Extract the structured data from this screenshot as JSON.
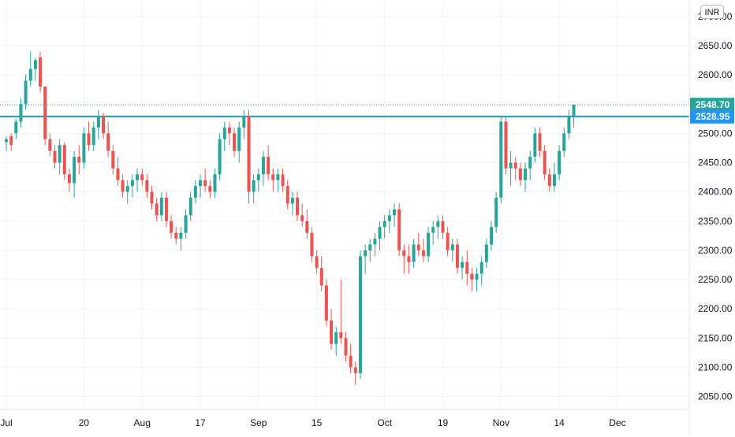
{
  "instrument": {
    "currency": "INR"
  },
  "colors": {
    "up": "#26a69a",
    "down": "#ef5350",
    "grid": "#f0f3fa",
    "level_line": "#1e9bc4",
    "last_tag": "#26a69a",
    "level_tag": "#2196f3",
    "dotted": "#26a69a"
  },
  "chart_data": {
    "type": "candlestick",
    "y_axis": {
      "range": [
        2028,
        2728
      ],
      "ticks": [
        "2700.00",
        "2650.00",
        "2600.00",
        "2550.00",
        "2500.00",
        "2450.00",
        "2400.00",
        "2350.00",
        "2300.00",
        "2250.00",
        "2200.00",
        "2150.00",
        "2100.00",
        "2050.00"
      ],
      "tick_values": [
        2700,
        2650,
        2600,
        2550,
        2500,
        2450,
        2400,
        2350,
        2300,
        2250,
        2200,
        2150,
        2100,
        2050
      ]
    },
    "x_axis": {
      "labels": [
        "Jul",
        "20",
        "Aug",
        "17",
        "Sep",
        "15",
        "Oct",
        "19",
        "Nov",
        "14",
        "Dec"
      ],
      "label_bar_index": [
        0,
        16,
        28,
        40,
        52,
        64,
        78,
        90,
        102,
        114,
        126
      ]
    },
    "price_lines": {
      "last_price": 2548.7,
      "last_price_label": "2548.70",
      "level": 2528.95,
      "level_label": "2528.95"
    },
    "candles": [
      [
        2485,
        2495,
        2470,
        2490
      ],
      [
        2495,
        2500,
        2470,
        2480
      ],
      [
        2500,
        2525,
        2490,
        2520
      ],
      [
        2520,
        2560,
        2510,
        2550
      ],
      [
        2550,
        2600,
        2540,
        2590
      ],
      [
        2590,
        2640,
        2580,
        2610
      ],
      [
        2610,
        2630,
        2590,
        2625
      ],
      [
        2630,
        2640,
        2570,
        2580
      ],
      [
        2580,
        2580,
        2480,
        2490
      ],
      [
        2490,
        2500,
        2460,
        2470
      ],
      [
        2470,
        2480,
        2440,
        2450
      ],
      [
        2450,
        2490,
        2430,
        2480
      ],
      [
        2480,
        2485,
        2420,
        2430
      ],
      [
        2430,
        2440,
        2400,
        2415
      ],
      [
        2415,
        2470,
        2390,
        2460
      ],
      [
        2460,
        2480,
        2430,
        2450
      ],
      [
        2450,
        2510,
        2440,
        2500
      ],
      [
        2500,
        2520,
        2470,
        2480
      ],
      [
        2480,
        2520,
        2470,
        2510
      ],
      [
        2510,
        2540,
        2490,
        2530
      ],
      [
        2530,
        2535,
        2490,
        2500
      ],
      [
        2500,
        2520,
        2460,
        2470
      ],
      [
        2470,
        2480,
        2430,
        2440
      ],
      [
        2440,
        2460,
        2410,
        2420
      ],
      [
        2420,
        2430,
        2390,
        2400
      ],
      [
        2400,
        2420,
        2380,
        2410
      ],
      [
        2410,
        2430,
        2390,
        2420
      ],
      [
        2420,
        2440,
        2400,
        2430
      ],
      [
        2430,
        2440,
        2410,
        2420
      ],
      [
        2420,
        2430,
        2390,
        2400
      ],
      [
        2400,
        2410,
        2370,
        2380
      ],
      [
        2380,
        2390,
        2350,
        2360
      ],
      [
        2360,
        2400,
        2350,
        2390
      ],
      [
        2390,
        2400,
        2340,
        2350
      ],
      [
        2350,
        2360,
        2320,
        2330
      ],
      [
        2330,
        2340,
        2310,
        2320
      ],
      [
        2320,
        2340,
        2300,
        2330
      ],
      [
        2330,
        2370,
        2320,
        2360
      ],
      [
        2360,
        2400,
        2350,
        2390
      ],
      [
        2390,
        2420,
        2380,
        2410
      ],
      [
        2410,
        2430,
        2390,
        2420
      ],
      [
        2420,
        2440,
        2400,
        2410
      ],
      [
        2410,
        2420,
        2390,
        2400
      ],
      [
        2400,
        2440,
        2390,
        2430
      ],
      [
        2430,
        2500,
        2420,
        2490
      ],
      [
        2490,
        2520,
        2470,
        2510
      ],
      [
        2510,
        2520,
        2480,
        2500
      ],
      [
        2500,
        2510,
        2460,
        2470
      ],
      [
        2470,
        2520,
        2450,
        2510
      ],
      [
        2510,
        2540,
        2490,
        2530
      ],
      [
        2530,
        2540,
        2380,
        2400
      ],
      [
        2400,
        2430,
        2380,
        2420
      ],
      [
        2420,
        2440,
        2400,
        2430
      ],
      [
        2430,
        2470,
        2410,
        2460
      ],
      [
        2460,
        2480,
        2420,
        2430
      ],
      [
        2430,
        2440,
        2400,
        2420
      ],
      [
        2420,
        2440,
        2400,
        2430
      ],
      [
        2430,
        2440,
        2400,
        2410
      ],
      [
        2410,
        2420,
        2370,
        2380
      ],
      [
        2380,
        2400,
        2360,
        2390
      ],
      [
        2390,
        2400,
        2350,
        2360
      ],
      [
        2360,
        2380,
        2340,
        2350
      ],
      [
        2350,
        2370,
        2320,
        2330
      ],
      [
        2330,
        2340,
        2280,
        2290
      ],
      [
        2290,
        2300,
        2260,
        2270
      ],
      [
        2270,
        2290,
        2230,
        2240
      ],
      [
        2240,
        2250,
        2170,
        2180
      ],
      [
        2180,
        2200,
        2130,
        2140
      ],
      [
        2140,
        2170,
        2120,
        2160
      ],
      [
        2160,
        2250,
        2140,
        2150
      ],
      [
        2150,
        2160,
        2110,
        2120
      ],
      [
        2120,
        2140,
        2090,
        2100
      ],
      [
        2100,
        2110,
        2070,
        2090
      ],
      [
        2090,
        2300,
        2080,
        2290
      ],
      [
        2290,
        2310,
        2260,
        2300
      ],
      [
        2300,
        2320,
        2280,
        2310
      ],
      [
        2310,
        2330,
        2290,
        2320
      ],
      [
        2320,
        2350,
        2300,
        2340
      ],
      [
        2340,
        2360,
        2320,
        2350
      ],
      [
        2350,
        2370,
        2330,
        2360
      ],
      [
        2360,
        2380,
        2340,
        2370
      ],
      [
        2370,
        2380,
        2290,
        2300
      ],
      [
        2300,
        2310,
        2260,
        2290
      ],
      [
        2290,
        2310,
        2260,
        2280
      ],
      [
        2280,
        2320,
        2270,
        2310
      ],
      [
        2310,
        2330,
        2290,
        2300
      ],
      [
        2300,
        2320,
        2280,
        2290
      ],
      [
        2290,
        2340,
        2280,
        2330
      ],
      [
        2330,
        2350,
        2310,
        2340
      ],
      [
        2340,
        2360,
        2320,
        2350
      ],
      [
        2350,
        2360,
        2320,
        2330
      ],
      [
        2330,
        2340,
        2290,
        2300
      ],
      [
        2300,
        2320,
        2280,
        2310
      ],
      [
        2310,
        2320,
        2260,
        2270
      ],
      [
        2270,
        2290,
        2250,
        2280
      ],
      [
        2280,
        2300,
        2240,
        2260
      ],
      [
        2260,
        2270,
        2230,
        2250
      ],
      [
        2250,
        2270,
        2230,
        2260
      ],
      [
        2260,
        2290,
        2240,
        2280
      ],
      [
        2280,
        2320,
        2270,
        2310
      ],
      [
        2310,
        2350,
        2300,
        2340
      ],
      [
        2340,
        2400,
        2330,
        2390
      ],
      [
        2390,
        2530,
        2380,
        2520
      ],
      [
        2520,
        2530,
        2430,
        2440
      ],
      [
        2440,
        2470,
        2410,
        2450
      ],
      [
        2450,
        2460,
        2420,
        2440
      ],
      [
        2440,
        2450,
        2410,
        2420
      ],
      [
        2420,
        2450,
        2400,
        2440
      ],
      [
        2440,
        2470,
        2420,
        2460
      ],
      [
        2460,
        2510,
        2450,
        2500
      ],
      [
        2500,
        2510,
        2460,
        2470
      ],
      [
        2470,
        2480,
        2420,
        2430
      ],
      [
        2430,
        2440,
        2400,
        2410
      ],
      [
        2410,
        2450,
        2400,
        2430
      ],
      [
        2430,
        2480,
        2420,
        2470
      ],
      [
        2470,
        2510,
        2460,
        2500
      ],
      [
        2500,
        2540,
        2490,
        2530
      ],
      [
        2530,
        2550,
        2510,
        2548.7
      ]
    ]
  }
}
